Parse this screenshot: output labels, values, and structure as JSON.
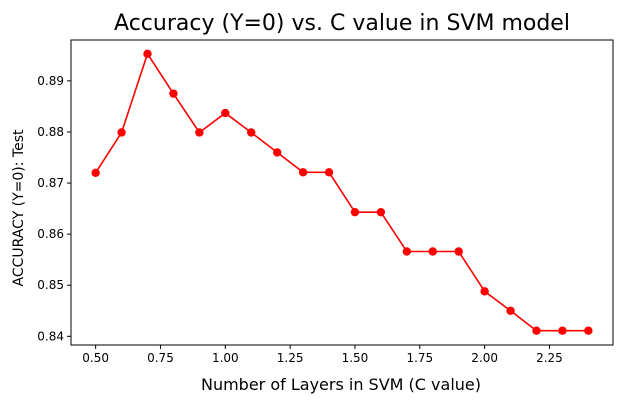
{
  "chart_data": {
    "type": "line",
    "title": "Accuracy (Y=0) vs. C value in SVM model",
    "xlabel": "Number of Layers in SVM (C value)",
    "ylabel": "ACCURACY (Y=0): Test",
    "x": [
      0.5,
      0.6,
      0.7,
      0.8,
      0.9,
      1.0,
      1.1,
      1.2,
      1.3,
      1.4,
      1.5,
      1.6,
      1.7,
      1.8,
      1.9,
      2.0,
      2.1,
      2.2,
      2.3,
      2.4
    ],
    "series": [
      {
        "values": [
          0.872,
          0.8799,
          0.8953,
          0.8875,
          0.8799,
          0.8837,
          0.8799,
          0.876,
          0.8721,
          0.8721,
          0.8643,
          0.8643,
          0.8566,
          0.8566,
          0.8566,
          0.8488,
          0.845,
          0.8411,
          0.8411,
          0.8411
        ],
        "color": "#ff0000",
        "marker": "circle"
      }
    ],
    "xlim": [
      0.405,
      2.495
    ],
    "ylim": [
      0.8383,
      0.898
    ],
    "xticks": [
      0.5,
      0.75,
      1.0,
      1.25,
      1.5,
      1.75,
      2.0,
      2.25
    ],
    "xtick_labels": [
      "0.50",
      "0.75",
      "1.00",
      "1.25",
      "1.50",
      "1.75",
      "2.00",
      "2.25"
    ],
    "yticks": [
      0.84,
      0.85,
      0.86,
      0.87,
      0.88,
      0.89
    ],
    "ytick_labels": [
      "0.84",
      "0.85",
      "0.86",
      "0.87",
      "0.88",
      "0.89"
    ],
    "grid": false,
    "legend": false
  }
}
